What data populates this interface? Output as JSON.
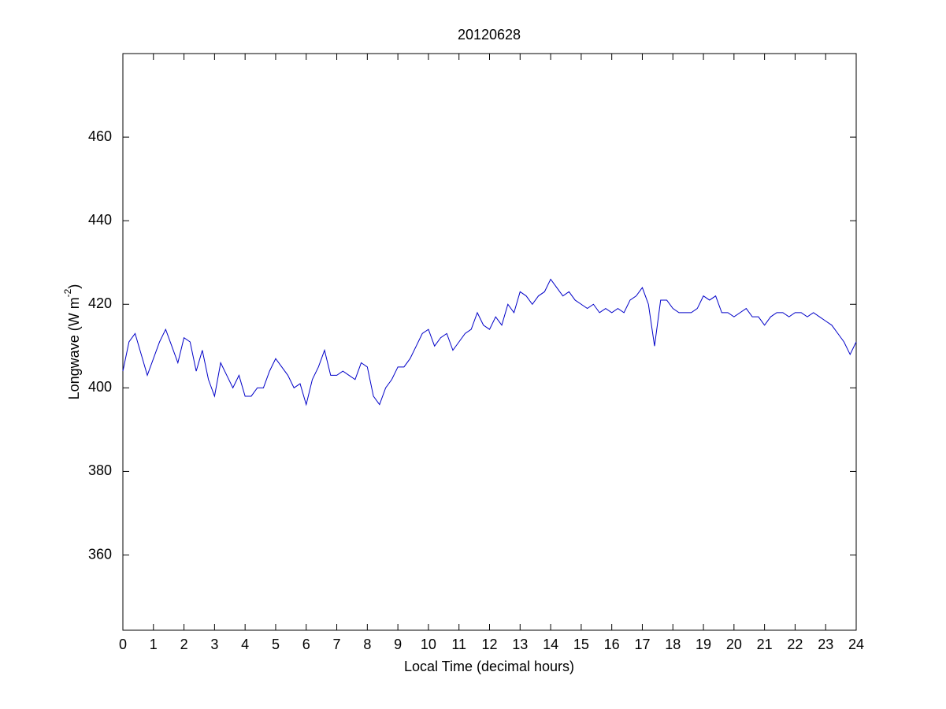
{
  "chart_data": {
    "type": "line",
    "title": "20120628",
    "xlabel": "Local Time (decimal hours)",
    "ylabel": {
      "text": "Longwave (W m",
      "superscript": "-2",
      "suffix": ")"
    },
    "color": "#0000c8",
    "x": [
      0,
      0.2,
      0.4,
      0.6,
      0.8,
      1.0,
      1.2,
      1.4,
      1.6,
      1.8,
      2.0,
      2.2,
      2.4,
      2.6,
      2.8,
      3.0,
      3.2,
      3.4,
      3.6,
      3.8,
      4.0,
      4.2,
      4.4,
      4.6,
      4.8,
      5.0,
      5.2,
      5.4,
      5.6,
      5.8,
      6.0,
      6.2,
      6.4,
      6.6,
      6.8,
      7.0,
      7.2,
      7.4,
      7.6,
      7.8,
      8.0,
      8.2,
      8.4,
      8.6,
      8.8,
      9.0,
      9.2,
      9.4,
      9.6,
      9.8,
      10.0,
      10.2,
      10.4,
      10.6,
      10.8,
      11.0,
      11.2,
      11.4,
      11.6,
      11.8,
      12.0,
      12.2,
      12.4,
      12.6,
      12.8,
      13.0,
      13.2,
      13.4,
      13.6,
      13.8,
      14.0,
      14.2,
      14.4,
      14.6,
      14.8,
      15.0,
      15.2,
      15.4,
      15.6,
      15.8,
      16.0,
      16.2,
      16.4,
      16.6,
      16.8,
      17.0,
      17.2,
      17.4,
      17.6,
      17.8,
      18.0,
      18.2,
      18.4,
      18.6,
      18.8,
      19.0,
      19.2,
      19.4,
      19.6,
      19.8,
      20.0,
      20.2,
      20.4,
      20.6,
      20.8,
      21.0,
      21.2,
      21.4,
      21.6,
      21.8,
      22.0,
      22.2,
      22.4,
      22.6,
      22.8,
      23.0,
      23.2,
      23.4,
      23.6,
      23.8,
      24.0
    ],
    "values": [
      404,
      411,
      413,
      408,
      403,
      407,
      411,
      414,
      410,
      406,
      412,
      411,
      404,
      409,
      402,
      398,
      406,
      403,
      400,
      403,
      398,
      398,
      400,
      400,
      404,
      407,
      405,
      403,
      400,
      401,
      396,
      402,
      405,
      409,
      403,
      403,
      404,
      403,
      402,
      406,
      405,
      398,
      396,
      400,
      402,
      405,
      405,
      407,
      410,
      413,
      414,
      410,
      412,
      413,
      409,
      411,
      413,
      414,
      418,
      415,
      414,
      417,
      415,
      420,
      418,
      423,
      422,
      420,
      422,
      423,
      426,
      424,
      422,
      423,
      421,
      420,
      419,
      420,
      418,
      419,
      418,
      419,
      418,
      421,
      422,
      424,
      420,
      410,
      421,
      421,
      419,
      418,
      418,
      418,
      419,
      422,
      421,
      422,
      418,
      418,
      417,
      418,
      419,
      417,
      417,
      415,
      417,
      418,
      418,
      417,
      418,
      418,
      417,
      418,
      417,
      416,
      415,
      413,
      411,
      408,
      411
    ],
    "xlim": [
      0,
      24
    ],
    "xticks": [
      0,
      1,
      2,
      3,
      4,
      5,
      6,
      7,
      8,
      9,
      10,
      11,
      12,
      13,
      14,
      15,
      16,
      17,
      18,
      19,
      20,
      21,
      22,
      23,
      24
    ],
    "ylim": [
      342,
      480
    ],
    "yticks": [
      360,
      380,
      400,
      420,
      440,
      460
    ]
  }
}
